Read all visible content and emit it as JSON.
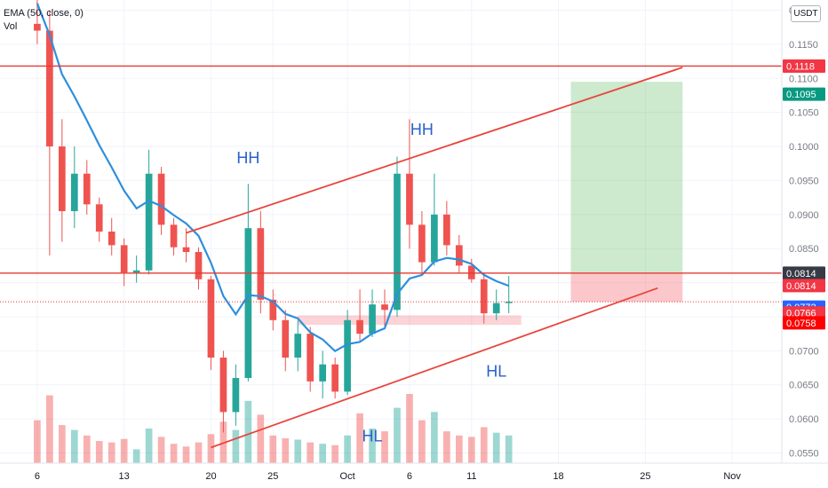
{
  "legend": {
    "ema": "EMA (50, close, 0)",
    "vol": "Vol"
  },
  "currency": "USDT",
  "chart_data": {
    "type": "candlestick",
    "y_ticks": [
      "0.1200",
      "0.1150",
      "0.1100",
      "0.1050",
      "0.1000",
      "0.0950",
      "0.0900",
      "0.0850",
      "0.0800",
      "0.0750",
      "0.0700",
      "0.0650",
      "0.0600",
      "0.0550"
    ],
    "x_ticks": [
      {
        "label": "6",
        "date": "2021-09-06"
      },
      {
        "label": "13",
        "date": "2021-09-13"
      },
      {
        "label": "20",
        "date": "2021-09-20"
      },
      {
        "label": "25",
        "date": "2021-09-25"
      },
      {
        "label": "Oct",
        "date": "2021-10-01"
      },
      {
        "label": "6",
        "date": "2021-10-06"
      },
      {
        "label": "11",
        "date": "2021-10-11"
      },
      {
        "label": "18",
        "date": "2021-10-18"
      },
      {
        "label": "25",
        "date": "2021-10-25"
      },
      {
        "label": "Nov",
        "date": "2021-11-01"
      }
    ],
    "ylim": [
      0.0535,
      0.1215
    ],
    "ema": {
      "name": "EMA (50, close, 0)",
      "color": "#2e8fdc"
    },
    "horizontal_lines": [
      {
        "price": 0.1118,
        "color": "#e53935"
      },
      {
        "price": 0.0814,
        "color": "#e53935"
      },
      {
        "price": 0.0772,
        "color": "#e53935",
        "style": "dotted"
      }
    ],
    "channel": {
      "color": "#e8453c",
      "upper": [
        {
          "date": "2021-09-18",
          "price": 0.0873
        },
        {
          "date": "2021-10-28",
          "price": 0.1116
        }
      ],
      "lower": [
        {
          "date": "2021-09-20",
          "price": 0.0558
        },
        {
          "date": "2021-10-26",
          "price": 0.0792
        }
      ]
    },
    "position": {
      "entry": 0.0814,
      "target": 0.1095,
      "stop": 0.0772,
      "date_start": "2021-10-19",
      "date_end": "2021-10-28"
    },
    "support_zone": {
      "price_high": 0.0752,
      "price_low": 0.0738,
      "date_start": "2021-09-27",
      "date_end": "2021-10-15"
    },
    "annotations": [
      {
        "text": "HH",
        "date": "2021-09-23",
        "price": 0.0975
      },
      {
        "text": "HH",
        "date": "2021-10-07",
        "price": 0.1017
      },
      {
        "text": "HL",
        "date": "2021-10-03",
        "price": 0.0567
      },
      {
        "text": "HL",
        "date": "2021-10-13",
        "price": 0.0662
      }
    ],
    "price_labels": [
      {
        "text": "0.1118",
        "price": 0.1118,
        "bg": "#f23645"
      },
      {
        "text": "0.1095",
        "price": 0.1095,
        "bg": "#089981"
      },
      {
        "text": "0.0814",
        "price": 0.0814,
        "bg": "#363a45"
      },
      {
        "text": "0.0814",
        "price": 0.0814,
        "bg": "#f23645"
      },
      {
        "text": "0.0772",
        "price": 0.0772,
        "bg": "#2962ff",
        "sub": "01:39:09"
      },
      {
        "text": "0.0766",
        "price": 0.0766,
        "bg": "#f23645"
      },
      {
        "text": "0.0758",
        "price": 0.0758,
        "bg": "#ff0000"
      }
    ],
    "candles": [
      {
        "date": "2021-09-06",
        "o": 0.118,
        "h": 0.123,
        "l": 0.115,
        "c": 0.117
      },
      {
        "date": "2021-09-07",
        "o": 0.117,
        "h": 0.12,
        "l": 0.084,
        "c": 0.1
      },
      {
        "date": "2021-09-08",
        "o": 0.1,
        "h": 0.104,
        "l": 0.086,
        "c": 0.0905
      },
      {
        "date": "2021-09-09",
        "o": 0.0905,
        "h": 0.1,
        "l": 0.088,
        "c": 0.096
      },
      {
        "date": "2021-09-10",
        "o": 0.096,
        "h": 0.098,
        "l": 0.09,
        "c": 0.0915
      },
      {
        "date": "2021-09-11",
        "o": 0.0915,
        "h": 0.0925,
        "l": 0.086,
        "c": 0.0875
      },
      {
        "date": "2021-09-12",
        "o": 0.0875,
        "h": 0.0895,
        "l": 0.084,
        "c": 0.0855
      },
      {
        "date": "2021-09-13",
        "o": 0.0855,
        "h": 0.0865,
        "l": 0.0795,
        "c": 0.0815
      },
      {
        "date": "2021-09-14",
        "o": 0.0815,
        "h": 0.084,
        "l": 0.08,
        "c": 0.0818
      },
      {
        "date": "2021-09-15",
        "o": 0.0818,
        "h": 0.0995,
        "l": 0.0812,
        "c": 0.096
      },
      {
        "date": "2021-09-16",
        "o": 0.096,
        "h": 0.097,
        "l": 0.087,
        "c": 0.0885
      },
      {
        "date": "2021-09-17",
        "o": 0.0885,
        "h": 0.0895,
        "l": 0.084,
        "c": 0.0852
      },
      {
        "date": "2021-09-18",
        "o": 0.0852,
        "h": 0.088,
        "l": 0.083,
        "c": 0.0845
      },
      {
        "date": "2021-09-19",
        "o": 0.0845,
        "h": 0.0852,
        "l": 0.079,
        "c": 0.0805
      },
      {
        "date": "2021-09-20",
        "o": 0.0805,
        "h": 0.081,
        "l": 0.0672,
        "c": 0.069
      },
      {
        "date": "2021-09-21",
        "o": 0.069,
        "h": 0.07,
        "l": 0.058,
        "c": 0.061
      },
      {
        "date": "2021-09-22",
        "o": 0.061,
        "h": 0.068,
        "l": 0.059,
        "c": 0.066
      },
      {
        "date": "2021-09-23",
        "o": 0.066,
        "h": 0.0945,
        "l": 0.0655,
        "c": 0.088
      },
      {
        "date": "2021-09-24",
        "o": 0.088,
        "h": 0.0905,
        "l": 0.0755,
        "c": 0.0775
      },
      {
        "date": "2021-09-25",
        "o": 0.0775,
        "h": 0.079,
        "l": 0.073,
        "c": 0.0745
      },
      {
        "date": "2021-09-26",
        "o": 0.0745,
        "h": 0.076,
        "l": 0.067,
        "c": 0.069
      },
      {
        "date": "2021-09-27",
        "o": 0.069,
        "h": 0.0745,
        "l": 0.067,
        "c": 0.0725
      },
      {
        "date": "2021-09-28",
        "o": 0.0725,
        "h": 0.0735,
        "l": 0.064,
        "c": 0.0655
      },
      {
        "date": "2021-09-29",
        "o": 0.0655,
        "h": 0.07,
        "l": 0.063,
        "c": 0.068
      },
      {
        "date": "2021-09-30",
        "o": 0.068,
        "h": 0.069,
        "l": 0.063,
        "c": 0.064
      },
      {
        "date": "2021-10-01",
        "o": 0.064,
        "h": 0.076,
        "l": 0.0635,
        "c": 0.0745
      },
      {
        "date": "2021-10-02",
        "o": 0.0745,
        "h": 0.079,
        "l": 0.0715,
        "c": 0.0725
      },
      {
        "date": "2021-10-03",
        "o": 0.0725,
        "h": 0.079,
        "l": 0.072,
        "c": 0.0768
      },
      {
        "date": "2021-10-04",
        "o": 0.0768,
        "h": 0.079,
        "l": 0.0735,
        "c": 0.076
      },
      {
        "date": "2021-10-05",
        "o": 0.076,
        "h": 0.0985,
        "l": 0.075,
        "c": 0.096
      },
      {
        "date": "2021-10-06",
        "o": 0.096,
        "h": 0.104,
        "l": 0.085,
        "c": 0.0885
      },
      {
        "date": "2021-10-07",
        "o": 0.0885,
        "h": 0.0905,
        "l": 0.0815,
        "c": 0.083
      },
      {
        "date": "2021-10-08",
        "o": 0.083,
        "h": 0.096,
        "l": 0.0825,
        "c": 0.09
      },
      {
        "date": "2021-10-09",
        "o": 0.09,
        "h": 0.092,
        "l": 0.084,
        "c": 0.0855
      },
      {
        "date": "2021-10-10",
        "o": 0.0855,
        "h": 0.087,
        "l": 0.0815,
        "c": 0.0825
      },
      {
        "date": "2021-10-11",
        "o": 0.0825,
        "h": 0.0835,
        "l": 0.08,
        "c": 0.0805
      },
      {
        "date": "2021-10-12",
        "o": 0.0805,
        "h": 0.0815,
        "l": 0.074,
        "c": 0.0755
      },
      {
        "date": "2021-10-13",
        "o": 0.0755,
        "h": 0.079,
        "l": 0.0745,
        "c": 0.077
      },
      {
        "date": "2021-10-14",
        "o": 0.077,
        "h": 0.081,
        "l": 0.0755,
        "c": 0.0772
      }
    ],
    "volumes": [
      0.62,
      0.98,
      0.55,
      0.48,
      0.4,
      0.32,
      0.3,
      0.35,
      0.2,
      0.5,
      0.38,
      0.28,
      0.24,
      0.3,
      0.42,
      0.6,
      0.48,
      0.9,
      0.7,
      0.4,
      0.36,
      0.34,
      0.3,
      0.28,
      0.26,
      0.4,
      0.72,
      0.5,
      0.46,
      0.8,
      1.0,
      0.62,
      0.74,
      0.46,
      0.4,
      0.38,
      0.52,
      0.44,
      0.4
    ]
  }
}
